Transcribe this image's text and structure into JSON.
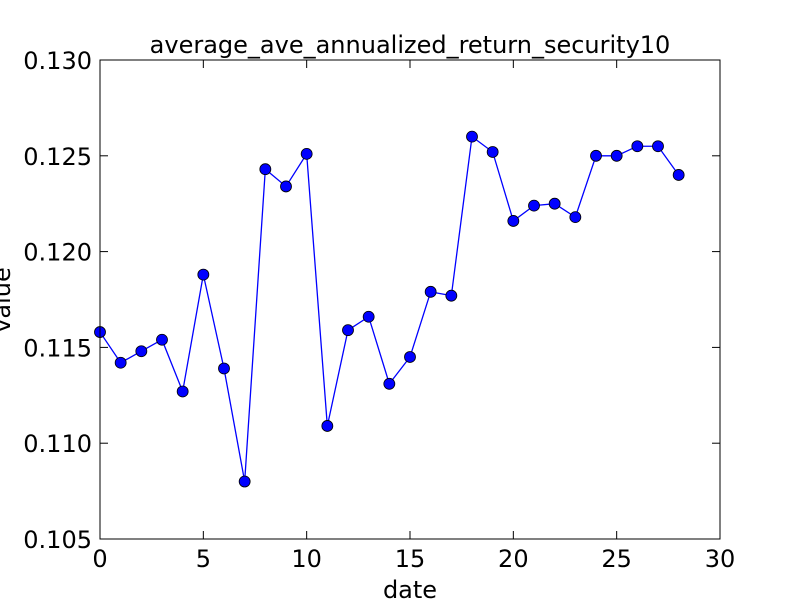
{
  "chart_data": {
    "type": "line",
    "title": "average_ave_annualized_return_security10",
    "xlabel": "date",
    "ylabel": "value",
    "xlim": [
      0,
      30
    ],
    "ylim": [
      0.105,
      0.13
    ],
    "xticks": [
      0,
      5,
      10,
      15,
      20,
      25,
      30
    ],
    "xtick_labels": [
      "0",
      "5",
      "10",
      "15",
      "20",
      "25",
      "30"
    ],
    "yticks": [
      0.105,
      0.11,
      0.115,
      0.12,
      0.125,
      0.13
    ],
    "ytick_labels": [
      "0.105",
      "0.110",
      "0.115",
      "0.120",
      "0.125",
      "0.130"
    ],
    "grid": false,
    "series": [
      {
        "color": "#0000ff",
        "marker": "circle",
        "x": [
          0,
          1,
          2,
          3,
          4,
          5,
          6,
          7,
          8,
          9,
          10,
          11,
          12,
          13,
          14,
          15,
          16,
          17,
          18,
          19,
          20,
          21,
          22,
          23,
          24,
          25,
          26,
          27,
          28
        ],
        "y": [
          0.1158,
          0.1142,
          0.1148,
          0.1154,
          0.1127,
          0.1188,
          0.1139,
          0.108,
          0.1243,
          0.1234,
          0.1251,
          0.1109,
          0.1159,
          0.1166,
          0.1131,
          0.1145,
          0.1179,
          0.1177,
          0.126,
          0.1252,
          0.1216,
          0.1224,
          0.1225,
          0.1218,
          0.125,
          0.125,
          0.1255,
          0.1255,
          0.124
        ]
      }
    ]
  }
}
